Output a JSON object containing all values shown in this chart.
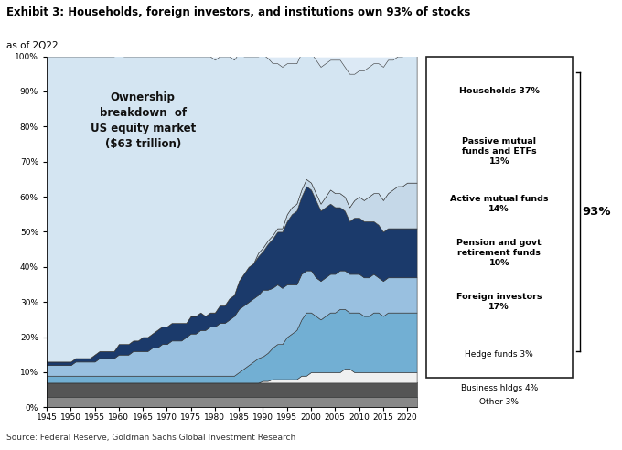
{
  "title": "Exhibit 3: Households, foreign investors, and institutions own 93% of stocks",
  "subtitle": "as of 2Q22",
  "source": "Source: Federal Reserve, Goldman Sachs Global Investment Research",
  "annotation": "Ownership\nbreakdown  of\nUS equity market\n($63 trillion)",
  "years": [
    1945,
    1946,
    1947,
    1948,
    1949,
    1950,
    1951,
    1952,
    1953,
    1954,
    1955,
    1956,
    1957,
    1958,
    1959,
    1960,
    1961,
    1962,
    1963,
    1964,
    1965,
    1966,
    1967,
    1968,
    1969,
    1970,
    1971,
    1972,
    1973,
    1974,
    1975,
    1976,
    1977,
    1978,
    1979,
    1980,
    1981,
    1982,
    1983,
    1984,
    1985,
    1986,
    1987,
    1988,
    1989,
    1990,
    1991,
    1992,
    1993,
    1994,
    1995,
    1996,
    1997,
    1998,
    1999,
    2000,
    2001,
    2002,
    2003,
    2004,
    2005,
    2006,
    2007,
    2008,
    2009,
    2010,
    2011,
    2012,
    2013,
    2014,
    2015,
    2016,
    2017,
    2018,
    2019,
    2020,
    2021,
    2022
  ],
  "colors_bottom_to_top": [
    "#888888",
    "#555555",
    "#e8e8e8",
    "#72afd3",
    "#a8c8e8",
    "#1b3a6b",
    "#c8d8e8",
    "#d8e8f5"
  ],
  "pct_93": "93%",
  "ylim": [
    0,
    1.0
  ],
  "xlim": [
    1945,
    2022
  ],
  "plot_bg": "#dce9f5",
  "data": {
    "other": [
      0.03,
      0.03,
      0.03,
      0.03,
      0.03,
      0.03,
      0.03,
      0.03,
      0.03,
      0.03,
      0.03,
      0.03,
      0.03,
      0.03,
      0.03,
      0.03,
      0.03,
      0.03,
      0.03,
      0.03,
      0.03,
      0.03,
      0.03,
      0.03,
      0.03,
      0.03,
      0.03,
      0.03,
      0.03,
      0.03,
      0.03,
      0.03,
      0.03,
      0.03,
      0.03,
      0.03,
      0.03,
      0.03,
      0.03,
      0.03,
      0.03,
      0.03,
      0.03,
      0.03,
      0.03,
      0.03,
      0.03,
      0.03,
      0.03,
      0.03,
      0.03,
      0.03,
      0.03,
      0.03,
      0.03,
      0.03,
      0.03,
      0.03,
      0.03,
      0.03,
      0.03,
      0.03,
      0.03,
      0.03,
      0.03,
      0.03,
      0.03,
      0.03,
      0.03,
      0.03,
      0.03,
      0.03,
      0.03,
      0.03,
      0.03,
      0.03,
      0.03,
      0.03
    ],
    "business": [
      0.04,
      0.04,
      0.04,
      0.04,
      0.04,
      0.04,
      0.04,
      0.04,
      0.04,
      0.04,
      0.04,
      0.04,
      0.04,
      0.04,
      0.04,
      0.04,
      0.04,
      0.04,
      0.04,
      0.04,
      0.04,
      0.04,
      0.04,
      0.04,
      0.04,
      0.04,
      0.04,
      0.04,
      0.04,
      0.04,
      0.04,
      0.04,
      0.04,
      0.04,
      0.04,
      0.04,
      0.04,
      0.04,
      0.04,
      0.04,
      0.04,
      0.04,
      0.04,
      0.04,
      0.04,
      0.04,
      0.04,
      0.04,
      0.04,
      0.04,
      0.04,
      0.04,
      0.04,
      0.04,
      0.04,
      0.04,
      0.04,
      0.04,
      0.04,
      0.04,
      0.04,
      0.04,
      0.04,
      0.04,
      0.04,
      0.04,
      0.04,
      0.04,
      0.04,
      0.04,
      0.04,
      0.04,
      0.04,
      0.04,
      0.04,
      0.04,
      0.04,
      0.04
    ],
    "hedge": [
      0.0,
      0.0,
      0.0,
      0.0,
      0.0,
      0.0,
      0.0,
      0.0,
      0.0,
      0.0,
      0.0,
      0.0,
      0.0,
      0.0,
      0.0,
      0.0,
      0.0,
      0.0,
      0.0,
      0.0,
      0.0,
      0.0,
      0.0,
      0.0,
      0.0,
      0.0,
      0.0,
      0.0,
      0.0,
      0.0,
      0.0,
      0.0,
      0.0,
      0.0,
      0.0,
      0.0,
      0.0,
      0.0,
      0.0,
      0.0,
      0.0,
      0.0,
      0.0,
      0.0,
      0.0,
      0.005,
      0.005,
      0.01,
      0.01,
      0.01,
      0.01,
      0.01,
      0.01,
      0.02,
      0.02,
      0.03,
      0.03,
      0.03,
      0.03,
      0.03,
      0.03,
      0.03,
      0.04,
      0.04,
      0.03,
      0.03,
      0.03,
      0.03,
      0.03,
      0.03,
      0.03,
      0.03,
      0.03,
      0.03,
      0.03,
      0.03,
      0.03,
      0.03
    ],
    "foreign": [
      0.02,
      0.02,
      0.02,
      0.02,
      0.02,
      0.02,
      0.02,
      0.02,
      0.02,
      0.02,
      0.02,
      0.02,
      0.02,
      0.02,
      0.02,
      0.02,
      0.02,
      0.02,
      0.02,
      0.02,
      0.02,
      0.02,
      0.02,
      0.02,
      0.02,
      0.02,
      0.02,
      0.02,
      0.02,
      0.02,
      0.02,
      0.02,
      0.02,
      0.02,
      0.02,
      0.02,
      0.02,
      0.02,
      0.02,
      0.02,
      0.03,
      0.04,
      0.05,
      0.06,
      0.07,
      0.07,
      0.08,
      0.09,
      0.1,
      0.1,
      0.12,
      0.13,
      0.14,
      0.16,
      0.18,
      0.17,
      0.16,
      0.15,
      0.16,
      0.17,
      0.17,
      0.18,
      0.17,
      0.16,
      0.17,
      0.17,
      0.16,
      0.16,
      0.17,
      0.17,
      0.16,
      0.17,
      0.17,
      0.17,
      0.17,
      0.17,
      0.17,
      0.17
    ],
    "pension": [
      0.03,
      0.03,
      0.03,
      0.03,
      0.03,
      0.03,
      0.04,
      0.04,
      0.04,
      0.04,
      0.04,
      0.05,
      0.05,
      0.05,
      0.05,
      0.06,
      0.06,
      0.06,
      0.07,
      0.07,
      0.07,
      0.07,
      0.08,
      0.08,
      0.09,
      0.09,
      0.1,
      0.1,
      0.1,
      0.11,
      0.12,
      0.12,
      0.13,
      0.13,
      0.14,
      0.14,
      0.15,
      0.15,
      0.16,
      0.17,
      0.18,
      0.18,
      0.18,
      0.18,
      0.18,
      0.19,
      0.18,
      0.17,
      0.17,
      0.16,
      0.15,
      0.14,
      0.13,
      0.13,
      0.12,
      0.12,
      0.11,
      0.11,
      0.11,
      0.11,
      0.11,
      0.11,
      0.11,
      0.11,
      0.11,
      0.11,
      0.11,
      0.11,
      0.11,
      0.1,
      0.1,
      0.1,
      0.1,
      0.1,
      0.1,
      0.1,
      0.1,
      0.1
    ],
    "active_mf": [
      0.01,
      0.01,
      0.01,
      0.01,
      0.01,
      0.01,
      0.01,
      0.01,
      0.01,
      0.01,
      0.02,
      0.02,
      0.02,
      0.02,
      0.02,
      0.03,
      0.03,
      0.03,
      0.03,
      0.03,
      0.04,
      0.04,
      0.04,
      0.05,
      0.05,
      0.05,
      0.05,
      0.05,
      0.05,
      0.04,
      0.05,
      0.05,
      0.05,
      0.04,
      0.04,
      0.04,
      0.05,
      0.05,
      0.06,
      0.06,
      0.08,
      0.09,
      0.1,
      0.1,
      0.11,
      0.11,
      0.13,
      0.14,
      0.15,
      0.16,
      0.18,
      0.2,
      0.21,
      0.22,
      0.24,
      0.23,
      0.22,
      0.2,
      0.2,
      0.2,
      0.19,
      0.18,
      0.17,
      0.15,
      0.16,
      0.16,
      0.16,
      0.16,
      0.15,
      0.15,
      0.14,
      0.14,
      0.14,
      0.14,
      0.14,
      0.14,
      0.14,
      0.14
    ],
    "passive_mf": [
      0.0,
      0.0,
      0.0,
      0.0,
      0.0,
      0.0,
      0.0,
      0.0,
      0.0,
      0.0,
      0.0,
      0.0,
      0.0,
      0.0,
      0.0,
      0.0,
      0.0,
      0.0,
      0.0,
      0.0,
      0.0,
      0.0,
      0.0,
      0.0,
      0.0,
      0.0,
      0.0,
      0.0,
      0.0,
      0.0,
      0.0,
      0.0,
      0.0,
      0.0,
      0.0,
      0.0,
      0.0,
      0.0,
      0.0,
      0.0,
      0.0,
      0.0,
      0.0,
      0.0,
      0.01,
      0.01,
      0.01,
      0.01,
      0.01,
      0.01,
      0.02,
      0.02,
      0.02,
      0.02,
      0.02,
      0.02,
      0.02,
      0.02,
      0.03,
      0.04,
      0.04,
      0.04,
      0.04,
      0.04,
      0.05,
      0.06,
      0.06,
      0.07,
      0.08,
      0.09,
      0.09,
      0.1,
      0.11,
      0.12,
      0.12,
      0.13,
      0.13,
      0.13
    ],
    "households": [
      0.87,
      0.87,
      0.87,
      0.87,
      0.87,
      0.87,
      0.86,
      0.86,
      0.86,
      0.86,
      0.85,
      0.84,
      0.84,
      0.84,
      0.84,
      0.83,
      0.82,
      0.82,
      0.81,
      0.81,
      0.8,
      0.8,
      0.79,
      0.78,
      0.77,
      0.77,
      0.76,
      0.76,
      0.76,
      0.76,
      0.74,
      0.74,
      0.73,
      0.74,
      0.73,
      0.72,
      0.71,
      0.71,
      0.69,
      0.67,
      0.65,
      0.62,
      0.6,
      0.59,
      0.56,
      0.55,
      0.52,
      0.49,
      0.47,
      0.46,
      0.43,
      0.41,
      0.4,
      0.39,
      0.37,
      0.37,
      0.38,
      0.39,
      0.38,
      0.37,
      0.38,
      0.38,
      0.37,
      0.38,
      0.36,
      0.36,
      0.37,
      0.37,
      0.37,
      0.37,
      0.38,
      0.38,
      0.37,
      0.37,
      0.37,
      0.37,
      0.37,
      0.37
    ]
  },
  "legend_box": {
    "items_bold": [
      [
        "Households 37%",
        true
      ],
      [
        "Passive mutual\nfunds and ETFs\n13%",
        true
      ],
      [
        "Active mutual funds\n14%",
        true
      ],
      [
        "Pension and govt\nretirement funds\n10%",
        true
      ],
      [
        "Foreign investors\n17%",
        true
      ],
      [
        "Hedge funds 3%",
        false
      ]
    ],
    "items_below": [
      "Business hldgs 4%",
      "Other 3%"
    ]
  }
}
